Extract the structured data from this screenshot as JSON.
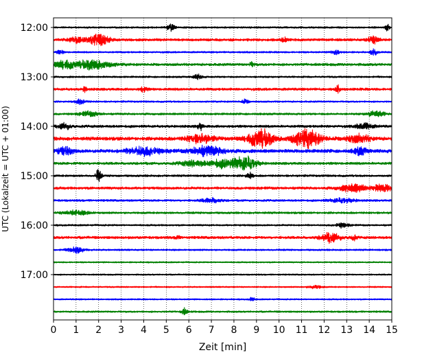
{
  "chart_data": {
    "type": "line",
    "title": "",
    "xlabel": "Zeit  [min]",
    "ylabel": "UTC (Lokalzeit = UTC + 01:00)",
    "xlim": [
      0,
      15
    ],
    "x_ticks": [
      "0",
      "1",
      "2",
      "3",
      "4",
      "5",
      "6",
      "7",
      "8",
      "9",
      "10",
      "11",
      "12",
      "13",
      "14",
      "15"
    ],
    "y_ticks": [
      "12:00",
      "13:00",
      "14:00",
      "15:00",
      "16:00",
      "17:00"
    ],
    "trace_interval_min": 15,
    "start_time": "12:00",
    "trace_colors": [
      "#000000",
      "#ff0000",
      "#0000ff",
      "#008000"
    ],
    "grid": "vertical dotted",
    "traces": [
      {
        "time": "12:00",
        "color": "#000000",
        "base": 0.1,
        "events": [
          {
            "t": 5.2,
            "a": 0.4,
            "w": 0.12
          },
          {
            "t": 14.8,
            "a": 0.45,
            "w": 0.06
          }
        ]
      },
      {
        "time": "12:15",
        "color": "#ff0000",
        "base": 0.15,
        "events": [
          {
            "t": 1.0,
            "a": 0.3,
            "w": 0.25
          },
          {
            "t": 2.0,
            "a": 0.7,
            "w": 0.3
          },
          {
            "t": 10.2,
            "a": 0.25,
            "w": 0.12
          },
          {
            "t": 14.2,
            "a": 0.4,
            "w": 0.18
          }
        ]
      },
      {
        "time": "12:30",
        "color": "#0000ff",
        "base": 0.1,
        "events": [
          {
            "t": 0.3,
            "a": 0.2,
            "w": 0.12
          },
          {
            "t": 12.5,
            "a": 0.3,
            "w": 0.12
          },
          {
            "t": 14.2,
            "a": 0.35,
            "w": 0.1
          }
        ]
      },
      {
        "time": "12:45",
        "color": "#008000",
        "base": 0.15,
        "events": [
          {
            "t": 0.5,
            "a": 0.45,
            "w": 0.3
          },
          {
            "t": 1.8,
            "a": 0.6,
            "w": 0.5
          },
          {
            "t": 8.8,
            "a": 0.25,
            "w": 0.08
          }
        ]
      },
      {
        "time": "13:00",
        "color": "#000000",
        "base": 0.1,
        "events": [
          {
            "t": 6.4,
            "a": 0.25,
            "w": 0.15
          }
        ]
      },
      {
        "time": "13:15",
        "color": "#ff0000",
        "base": 0.15,
        "events": [
          {
            "t": 1.4,
            "a": 0.35,
            "w": 0.06
          },
          {
            "t": 4.0,
            "a": 0.3,
            "w": 0.1
          },
          {
            "t": 12.6,
            "a": 0.4,
            "w": 0.06
          }
        ]
      },
      {
        "time": "13:30",
        "color": "#0000ff",
        "base": 0.1,
        "events": [
          {
            "t": 1.2,
            "a": 0.25,
            "w": 0.18
          },
          {
            "t": 8.5,
            "a": 0.22,
            "w": 0.12
          }
        ]
      },
      {
        "time": "13:45",
        "color": "#008000",
        "base": 0.12,
        "events": [
          {
            "t": 1.6,
            "a": 0.25,
            "w": 0.3
          },
          {
            "t": 14.3,
            "a": 0.35,
            "w": 0.25
          }
        ]
      },
      {
        "time": "14:00",
        "color": "#000000",
        "base": 0.15,
        "events": [
          {
            "t": 0.5,
            "a": 0.35,
            "w": 0.18
          },
          {
            "t": 6.5,
            "a": 0.4,
            "w": 0.08
          },
          {
            "t": 13.8,
            "a": 0.35,
            "w": 0.25
          }
        ]
      },
      {
        "time": "14:15",
        "color": "#ff0000",
        "base": 0.2,
        "events": [
          {
            "t": 6.5,
            "a": 0.45,
            "w": 0.4
          },
          {
            "t": 9.2,
            "a": 1.0,
            "w": 0.4
          },
          {
            "t": 11.2,
            "a": 1.0,
            "w": 0.45
          },
          {
            "t": 13.5,
            "a": 0.4,
            "w": 0.4
          }
        ]
      },
      {
        "time": "14:30",
        "color": "#0000ff",
        "base": 0.2,
        "events": [
          {
            "t": 0.5,
            "a": 0.4,
            "w": 0.25
          },
          {
            "t": 4.0,
            "a": 0.45,
            "w": 0.5
          },
          {
            "t": 6.8,
            "a": 0.5,
            "w": 0.5
          },
          {
            "t": 13.6,
            "a": 0.4,
            "w": 0.2
          }
        ]
      },
      {
        "time": "14:45",
        "color": "#008000",
        "base": 0.15,
        "events": [
          {
            "t": 6.2,
            "a": 0.3,
            "w": 0.4
          },
          {
            "t": 7.5,
            "a": 0.45,
            "w": 0.4
          },
          {
            "t": 8.5,
            "a": 0.8,
            "w": 0.35
          }
        ]
      },
      {
        "time": "15:00",
        "color": "#000000",
        "base": 0.12,
        "events": [
          {
            "t": 2.0,
            "a": 0.7,
            "w": 0.08
          },
          {
            "t": 8.7,
            "a": 0.35,
            "w": 0.1
          }
        ]
      },
      {
        "time": "15:15",
        "color": "#ff0000",
        "base": 0.15,
        "events": [
          {
            "t": 13.3,
            "a": 0.45,
            "w": 0.4
          },
          {
            "t": 14.6,
            "a": 0.4,
            "w": 0.3
          }
        ]
      },
      {
        "time": "15:30",
        "color": "#0000ff",
        "base": 0.12,
        "events": [
          {
            "t": 7.0,
            "a": 0.25,
            "w": 0.3
          },
          {
            "t": 12.8,
            "a": 0.25,
            "w": 0.4
          }
        ]
      },
      {
        "time": "15:45",
        "color": "#008000",
        "base": 0.12,
        "events": [
          {
            "t": 1.0,
            "a": 0.25,
            "w": 0.4
          }
        ]
      },
      {
        "time": "16:00",
        "color": "#000000",
        "base": 0.1,
        "events": [
          {
            "t": 12.8,
            "a": 0.25,
            "w": 0.2
          }
        ]
      },
      {
        "time": "16:15",
        "color": "#ff0000",
        "base": 0.15,
        "events": [
          {
            "t": 5.5,
            "a": 0.25,
            "w": 0.06
          },
          {
            "t": 12.3,
            "a": 0.5,
            "w": 0.3
          },
          {
            "t": 13.3,
            "a": 0.25,
            "w": 0.1
          }
        ]
      },
      {
        "time": "16:30",
        "color": "#0000ff",
        "base": 0.1,
        "events": [
          {
            "t": 1.0,
            "a": 0.35,
            "w": 0.25
          }
        ]
      },
      {
        "time": "16:45",
        "color": "#008000",
        "base": 0.08,
        "events": []
      },
      {
        "time": "17:00",
        "color": "#000000",
        "base": 0.08,
        "events": []
      },
      {
        "time": "17:15",
        "color": "#ff0000",
        "base": 0.08,
        "events": [
          {
            "t": 11.6,
            "a": 0.2,
            "w": 0.2
          }
        ]
      },
      {
        "time": "17:30",
        "color": "#0000ff",
        "base": 0.08,
        "events": [
          {
            "t": 8.8,
            "a": 0.2,
            "w": 0.08
          }
        ]
      },
      {
        "time": "17:45",
        "color": "#008000",
        "base": 0.1,
        "events": [
          {
            "t": 5.8,
            "a": 0.35,
            "w": 0.1
          }
        ]
      }
    ]
  }
}
